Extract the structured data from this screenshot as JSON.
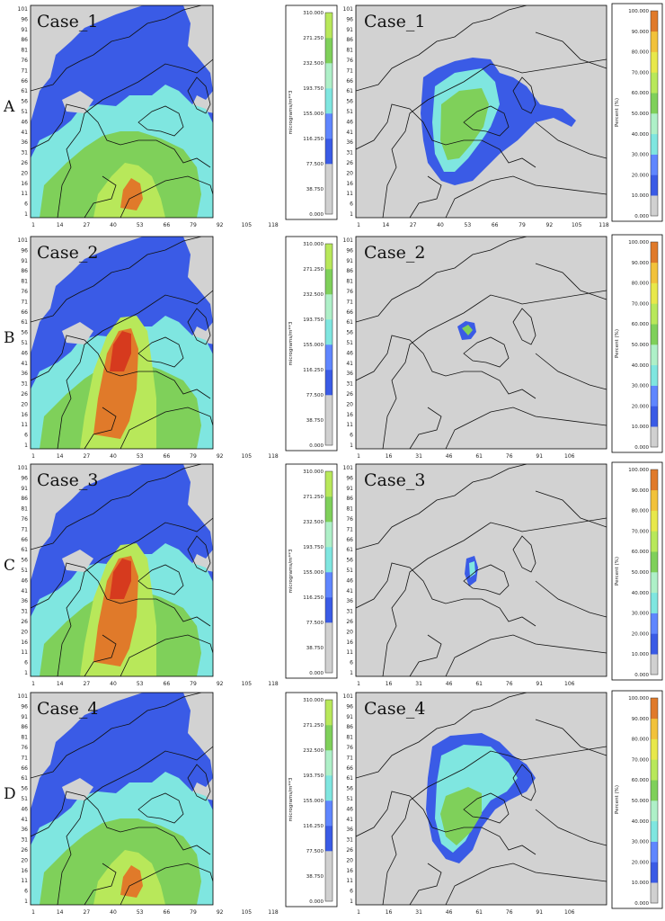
{
  "row_labels": [
    "A",
    "B",
    "C",
    "D"
  ],
  "case_titles": [
    "Case_1",
    "Case_2",
    "Case_3",
    "Case_4"
  ],
  "y_ticks": [
    "1",
    "6",
    "11",
    "16",
    "20",
    "26",
    "31",
    "36",
    "41",
    "46",
    "51",
    "56",
    "61",
    "66",
    "71",
    "76",
    "81",
    "86",
    "91",
    "96",
    "101"
  ],
  "x_ticks_wide": [
    "1",
    "14",
    "27",
    "40",
    "53",
    "66",
    "79",
    "92",
    "105",
    "118"
  ],
  "x_ticks_narrow": [
    "1",
    "16",
    "31",
    "46",
    "61",
    "76",
    "91",
    "106"
  ],
  "conc_colorbar": {
    "unit": "micrograms/m**3",
    "ticks": [
      "0.000",
      "38.750",
      "77.500",
      "116.250",
      "155.000",
      "193.750",
      "232.500",
      "271.250",
      "310.000"
    ],
    "colors": [
      "#d0d0d0",
      "#d0d0d0",
      "#3a5be6",
      "#5f86ff",
      "#7fe6e0",
      "#aef0c8",
      "#7fd05a",
      "#b8e85a",
      "#e8e84a",
      "#f2c23a",
      "#e07a2a",
      "#d63a1e",
      "#c81a1a"
    ]
  },
  "percent_colorbar": {
    "unit": "Percent (%)",
    "ticks": [
      "0.000",
      "10.000",
      "20.000",
      "30.000",
      "40.000",
      "50.000",
      "60.000",
      "70.000",
      "80.000",
      "90.000",
      "100.000"
    ],
    "colors": [
      "#d0d0d0",
      "#3a5be6",
      "#5f86ff",
      "#7fe6e0",
      "#aef0c8",
      "#7fd05a",
      "#b8e85a",
      "#e8e84a",
      "#f2c23a",
      "#e07a2a",
      "#c81a1a"
    ]
  },
  "colors": {
    "background": "#d2d2d2",
    "border": "#000000"
  },
  "chart_data": [
    {
      "type": "heatmap",
      "panel": "A-left",
      "title": "Case_1",
      "colorbar_unit": "micrograms/m**3",
      "colorbar_range": [
        0,
        310
      ],
      "x_ticks": [
        1,
        14,
        27,
        40,
        53,
        66,
        79,
        92,
        105,
        118
      ],
      "y_ticks": [
        1,
        6,
        11,
        16,
        20,
        26,
        31,
        36,
        41,
        46,
        51,
        56,
        61,
        66,
        71,
        76,
        81,
        86,
        91,
        96,
        101
      ]
    },
    {
      "type": "heatmap",
      "panel": "A-right",
      "title": "Case_1",
      "colorbar_unit": "Percent (%)",
      "colorbar_range": [
        0,
        100
      ],
      "x_ticks": [
        1,
        14,
        27,
        40,
        53,
        66,
        79,
        92,
        105,
        118
      ],
      "y_ticks": [
        1,
        6,
        11,
        16,
        20,
        26,
        31,
        36,
        41,
        46,
        51,
        56,
        61,
        66,
        71,
        76,
        81,
        86,
        91,
        96,
        101
      ]
    },
    {
      "type": "heatmap",
      "panel": "B-left",
      "title": "Case_2",
      "colorbar_unit": "micrograms/m**3",
      "colorbar_range": [
        0,
        310
      ],
      "x_ticks": [
        1,
        14,
        27,
        40,
        53,
        66,
        79,
        92,
        105,
        118
      ],
      "y_ticks": [
        1,
        6,
        11,
        16,
        20,
        26,
        31,
        36,
        41,
        46,
        51,
        56,
        61,
        66,
        71,
        76,
        81,
        86,
        91,
        96,
        101
      ]
    },
    {
      "type": "heatmap",
      "panel": "B-right",
      "title": "Case_2",
      "colorbar_unit": "Percent (%)",
      "colorbar_range": [
        0,
        100
      ],
      "x_ticks": [
        1,
        16,
        31,
        46,
        61,
        76,
        91,
        106
      ],
      "y_ticks": [
        1,
        6,
        11,
        16,
        20,
        26,
        31,
        36,
        41,
        46,
        51,
        56,
        61,
        66,
        71,
        76,
        81,
        86,
        91,
        96,
        101
      ]
    },
    {
      "type": "heatmap",
      "panel": "C-left",
      "title": "Case_3",
      "colorbar_unit": "micrograms/m**3",
      "colorbar_range": [
        0,
        310
      ],
      "x_ticks": [
        1,
        14,
        27,
        40,
        53,
        66,
        79,
        92,
        105,
        118
      ],
      "y_ticks": [
        1,
        6,
        11,
        16,
        20,
        26,
        31,
        36,
        41,
        46,
        51,
        56,
        61,
        66,
        71,
        76,
        81,
        86,
        91,
        96,
        101
      ]
    },
    {
      "type": "heatmap",
      "panel": "C-right",
      "title": "Case_3",
      "colorbar_unit": "Percent (%)",
      "colorbar_range": [
        0,
        100
      ],
      "x_ticks": [
        1,
        16,
        31,
        46,
        61,
        76,
        91,
        106
      ],
      "y_ticks": [
        1,
        6,
        11,
        16,
        20,
        26,
        31,
        36,
        41,
        46,
        51,
        56,
        61,
        66,
        71,
        76,
        81,
        86,
        91,
        96,
        101
      ]
    },
    {
      "type": "heatmap",
      "panel": "D-left",
      "title": "Case_4",
      "colorbar_unit": "micrograms/m**3",
      "colorbar_range": [
        0,
        310
      ],
      "x_ticks": [
        1,
        14,
        27,
        40,
        53,
        66,
        79,
        92,
        105,
        118
      ],
      "y_ticks": [
        1,
        6,
        11,
        16,
        20,
        26,
        31,
        36,
        41,
        46,
        51,
        56,
        61,
        66,
        71,
        76,
        81,
        86,
        91,
        96,
        101
      ]
    },
    {
      "type": "heatmap",
      "panel": "D-right",
      "title": "Case_4",
      "colorbar_unit": "Percent (%)",
      "colorbar_range": [
        0,
        100
      ],
      "x_ticks": [
        1,
        16,
        31,
        46,
        61,
        76,
        91,
        106
      ],
      "y_ticks": [
        1,
        6,
        11,
        16,
        20,
        26,
        31,
        36,
        41,
        46,
        51,
        56,
        61,
        66,
        71,
        76,
        81,
        86,
        91,
        96,
        101
      ]
    }
  ]
}
